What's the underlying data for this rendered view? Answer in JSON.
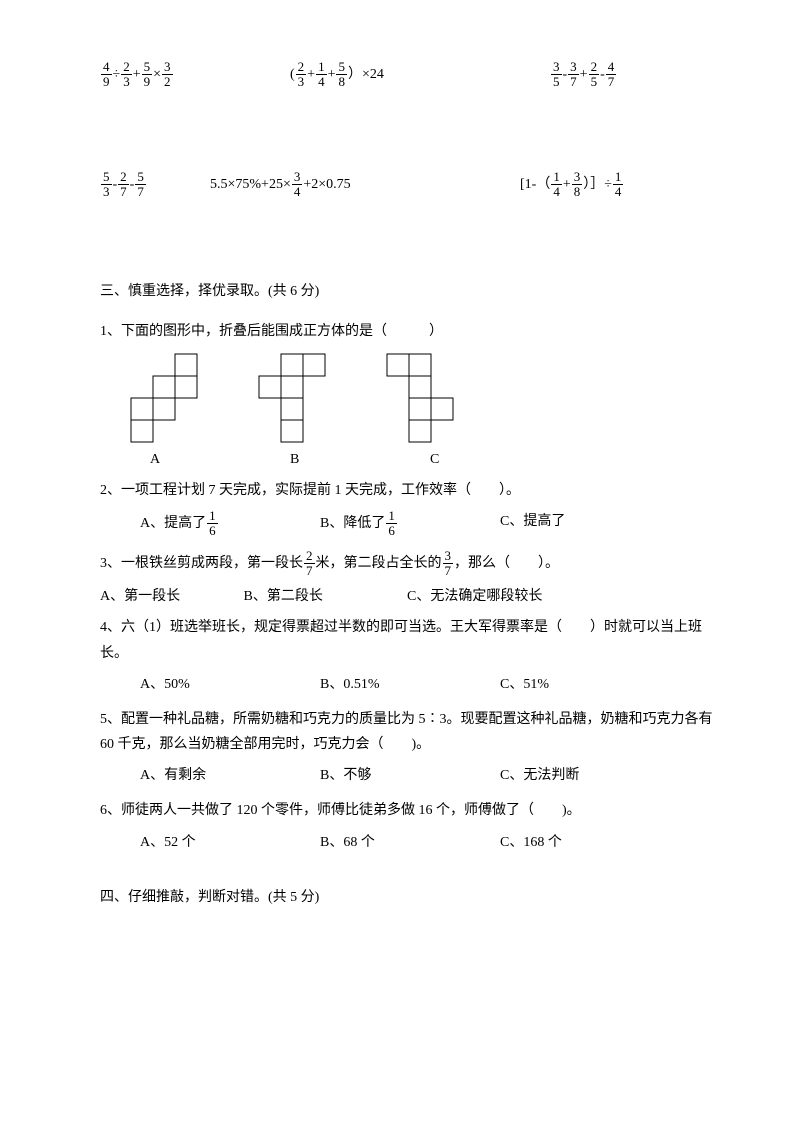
{
  "eq": {
    "r1a": {
      "t1n": "4",
      "t1d": "9",
      "op1": "÷",
      "t2n": "2",
      "t2d": "3",
      "op2": "+",
      "t3n": "5",
      "t3d": "9",
      "op3": "×",
      "t4n": "3",
      "t4d": "2"
    },
    "r1b": {
      "pre": "(",
      "t1n": "2",
      "t1d": "3",
      "op1": "+",
      "t2n": "1",
      "t2d": "4",
      "op2": "+",
      "t3n": "5",
      "t3d": "8",
      "post": "）×24"
    },
    "r1c": {
      "t1n": "3",
      "t1d": "5",
      "op1": "-",
      "t2n": "3",
      "t2d": "7",
      "op2": "+",
      "t3n": "2",
      "t3d": "5",
      "op3": "-",
      "t4n": "4",
      "t4d": "7"
    },
    "r2a": {
      "t1n": "5",
      "t1d": "3",
      "op1": "-",
      "t2n": "2",
      "t2d": "7",
      "op2": "-",
      "t3n": "5",
      "t3d": "7"
    },
    "r2b": {
      "pre": "5.5×75%+25×",
      "t1n": "3",
      "t1d": "4",
      "post": "+2×0.75"
    },
    "r2c": {
      "pre": "[1-（",
      "t1n": "1",
      "t1d": "4",
      "op1": "+",
      "t2n": "3",
      "t2d": "8",
      "mid": "）］÷",
      "t3n": "1",
      "t3d": "4"
    }
  },
  "s3": {
    "title": "三、慎重选择，择优录取。(共 6 分)",
    "q1": "1、下面的图形中，折叠后能围成正方体的是（　　　）",
    "labels": {
      "a": "A",
      "b": "B",
      "c": "C"
    },
    "q2": "2、一项工程计划 7 天完成，实际提前 1 天完成，工作效率（　　）。",
    "q2a_pre": "A、提高了",
    "q2a_n": "1",
    "q2a_d": "6",
    "q2b_pre": "B、降低了",
    "q2b_n": "1",
    "q2b_d": "6",
    "q2c": "C、提高了",
    "q3_pre": "3、一根铁丝剪成两段，第一段长",
    "q3_f1n": "2",
    "q3_f1d": "7",
    "q3_mid": "米，第二段占全长的",
    "q3_f2n": "3",
    "q3_f2d": "7",
    "q3_post": "，那么（　　）。",
    "q3a": "A、第一段长",
    "q3b": "B、第二段长",
    "q3c": "C、无法确定哪段较长",
    "q4": "4、六（1）班选举班长，规定得票超过半数的即可当选。王大军得票率是（　　）时就可以当上班长。",
    "q4a": "A、50%",
    "q4b": "B、0.51%",
    "q4c": "C、51%",
    "q5": "5、配置一种礼品糖，所需奶糖和巧克力的质量比为 5∶3。现要配置这种礼品糖，奶糖和巧克力各有 60 千克，那么当奶糖全部用完时，巧克力会（　　)。",
    "q5a": "A、有剩余",
    "q5b": "B、不够",
    "q5c": "C、无法判断",
    "q6": "6、师徒两人一共做了 120 个零件，师傅比徒弟多做 16 个，师傅做了（　　)。",
    "q6a": "A、52 个",
    "q6b": "B、68 个",
    "q6c": "C、168 个"
  },
  "s4": {
    "title": "四、仔细推敲，判断对错。(共 5 分)"
  },
  "shapes": {
    "cell": 22,
    "stroke": "#000",
    "A": [
      [
        2,
        0
      ],
      [
        2,
        1
      ],
      [
        1,
        1
      ],
      [
        1,
        2
      ],
      [
        0,
        2
      ],
      [
        0,
        3
      ]
    ],
    "B": [
      [
        1,
        0
      ],
      [
        2,
        0
      ],
      [
        0,
        1
      ],
      [
        1,
        1
      ],
      [
        1,
        2
      ],
      [
        1,
        3
      ]
    ],
    "C": [
      [
        0,
        0
      ],
      [
        1,
        0
      ],
      [
        1,
        1
      ],
      [
        1,
        2
      ],
      [
        2,
        2
      ],
      [
        1,
        3
      ]
    ]
  }
}
